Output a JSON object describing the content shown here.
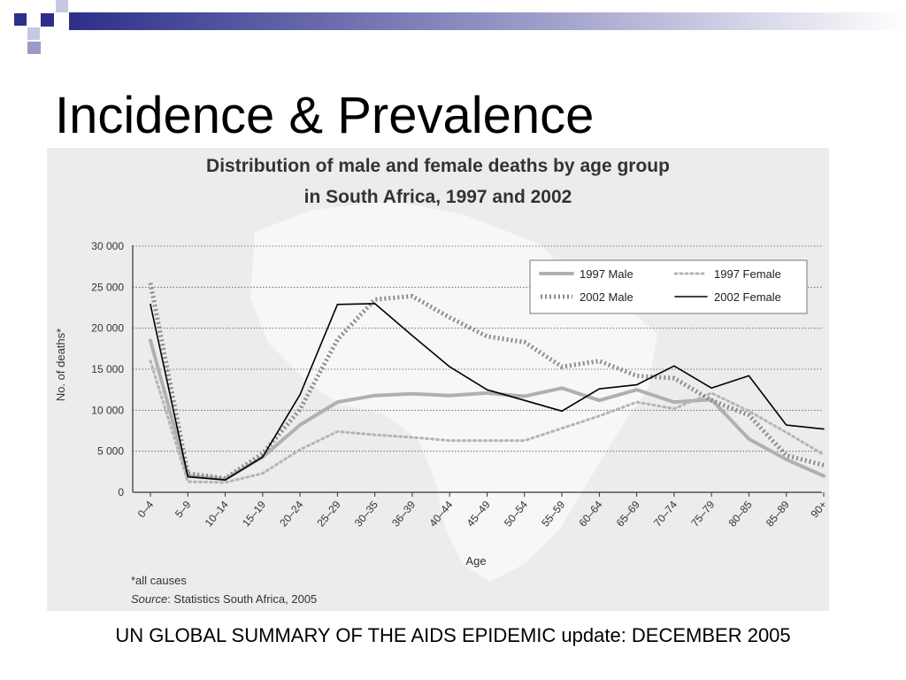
{
  "slide": {
    "title": "Incidence & Prevalence",
    "caption": "UN GLOBAL SUMMARY OF THE AIDS EPIDEMIC update: DECEMBER 2005",
    "accent_color": "#2d2f8a"
  },
  "chart_data": {
    "type": "line",
    "title_line1": "Distribution of male and female deaths by age group",
    "title_line2": "in South Africa, 1997 and 2002",
    "xlabel": "Age",
    "ylabel": "No. of deaths*",
    "ylim": [
      0,
      30000
    ],
    "yticks": [
      0,
      5000,
      10000,
      15000,
      20000,
      25000,
      30000
    ],
    "ytick_labels": [
      "0",
      "5 000",
      "10 000",
      "15 000",
      "20 000",
      "25 000",
      "30 000"
    ],
    "grid": true,
    "legend_position": "top-right",
    "categories": [
      "0–4",
      "5–9",
      "10–14",
      "15–19",
      "20–24",
      "25–29",
      "30–35",
      "36–39",
      "40–44",
      "45–49",
      "50–54",
      "55–59",
      "60–64",
      "65–69",
      "70–74",
      "75–79",
      "80–85",
      "85–89",
      "90+"
    ],
    "series": [
      {
        "name": "1997 Male",
        "color": "#b0b0b0",
        "style": "solid-thick",
        "values": [
          18500,
          2000,
          1600,
          4300,
          8200,
          11000,
          11800,
          12000,
          11800,
          12100,
          11700,
          12700,
          11200,
          12500,
          11000,
          11300,
          6500,
          4000,
          2000
        ]
      },
      {
        "name": "1997 Female",
        "color": "#b4b4b4",
        "style": "dotted",
        "values": [
          16000,
          1300,
          1200,
          2300,
          5200,
          7400,
          7000,
          6700,
          6300,
          6300,
          6300,
          7800,
          9300,
          11000,
          10200,
          12100,
          9900,
          7300,
          4600
        ]
      },
      {
        "name": "2002 Male",
        "color": "#8c8c8c",
        "style": "dotted-thick",
        "values": [
          25500,
          2300,
          1700,
          4700,
          10100,
          18600,
          23500,
          23900,
          21300,
          19000,
          18300,
          15300,
          16000,
          14200,
          13900,
          11200,
          9400,
          4500,
          3300
        ]
      },
      {
        "name": "2002 Female",
        "color": "#000000",
        "style": "solid-thin",
        "values": [
          22900,
          1900,
          1500,
          4300,
          11900,
          22900,
          23000,
          19100,
          15300,
          12500,
          11200,
          9900,
          12600,
          13100,
          15400,
          12700,
          14200,
          8200,
          7700
        ]
      }
    ],
    "footnote": "*all causes",
    "source_label": "Source",
    "source_text": ": Statistics South Africa, 2005"
  }
}
